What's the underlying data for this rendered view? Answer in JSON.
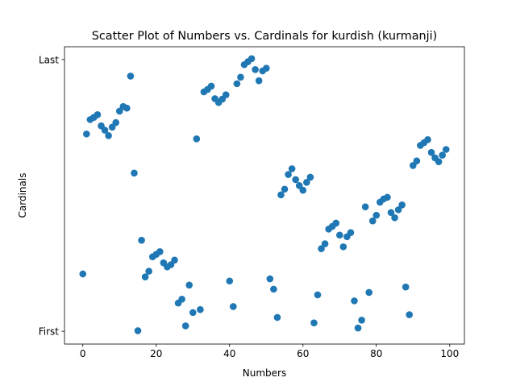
{
  "chart_data": {
    "type": "scatter",
    "title": "Scatter Plot of Numbers vs. Cardinals for kurdish (kurmanji)",
    "xlabel": "Numbers",
    "ylabel": "Cardinals",
    "xlim": [
      -5,
      104
    ],
    "ylim": [
      -0.047,
      1.047
    ],
    "xticks": [
      0,
      20,
      40,
      60,
      80,
      100
    ],
    "xtick_labels": [
      "0",
      "20",
      "40",
      "60",
      "80",
      "100"
    ],
    "yticks": [
      0,
      1
    ],
    "ytick_labels": [
      "First",
      "Last"
    ],
    "marker_color": "#1f77b4",
    "x": [
      0,
      1,
      2,
      3,
      4,
      5,
      6,
      7,
      8,
      9,
      10,
      11,
      12,
      13,
      14,
      15,
      16,
      17,
      18,
      19,
      20,
      21,
      22,
      23,
      24,
      25,
      26,
      27,
      28,
      29,
      30,
      31,
      32,
      33,
      34,
      35,
      36,
      37,
      38,
      39,
      40,
      41,
      42,
      43,
      44,
      45,
      46,
      47,
      48,
      49,
      50,
      51,
      52,
      53,
      54,
      55,
      56,
      57,
      58,
      59,
      60,
      61,
      62,
      63,
      64,
      65,
      66,
      67,
      68,
      69,
      70,
      71,
      72,
      73,
      74,
      75,
      76,
      77,
      78,
      79,
      80,
      81,
      82,
      83,
      84,
      85,
      86,
      87,
      88,
      89,
      90,
      91,
      92,
      93,
      94,
      95,
      96,
      97,
      98,
      99
    ],
    "y": [
      0.211,
      0.726,
      0.779,
      0.787,
      0.797,
      0.756,
      0.74,
      0.72,
      0.751,
      0.768,
      0.81,
      0.827,
      0.821,
      0.939,
      0.582,
      0.002,
      0.335,
      0.2,
      0.221,
      0.274,
      0.283,
      0.293,
      0.252,
      0.237,
      0.245,
      0.262,
      0.104,
      0.118,
      0.02,
      0.17,
      0.069,
      0.708,
      0.08,
      0.881,
      0.89,
      0.902,
      0.856,
      0.842,
      0.854,
      0.87,
      0.185,
      0.091,
      0.911,
      0.935,
      0.981,
      0.992,
      1.003,
      0.963,
      0.922,
      0.958,
      0.968,
      0.193,
      0.155,
      0.051,
      0.502,
      0.523,
      0.577,
      0.598,
      0.558,
      0.536,
      0.519,
      0.548,
      0.567,
      0.031,
      0.134,
      0.304,
      0.322,
      0.376,
      0.386,
      0.398,
      0.354,
      0.311,
      0.348,
      0.363,
      0.112,
      0.012,
      0.041,
      0.458,
      0.143,
      0.406,
      0.427,
      0.475,
      0.487,
      0.493,
      0.437,
      0.418,
      0.447,
      0.465,
      0.163,
      0.061,
      0.61,
      0.627,
      0.684,
      0.694,
      0.705,
      0.658,
      0.638,
      0.624,
      0.648,
      0.669
    ]
  }
}
